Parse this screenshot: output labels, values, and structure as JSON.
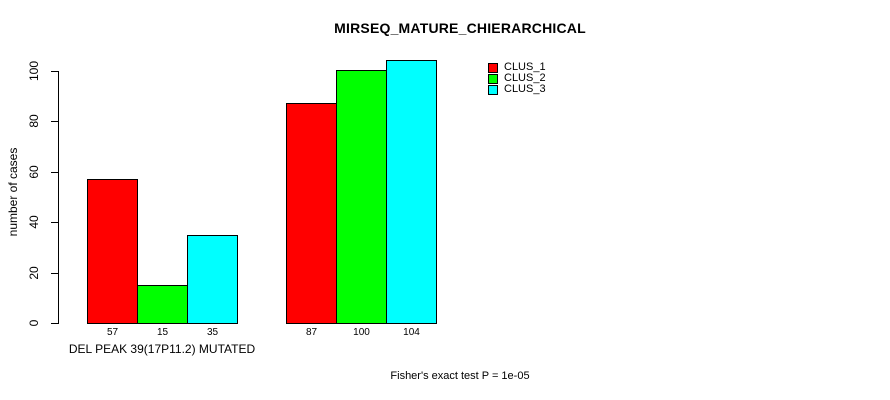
{
  "chart_data": {
    "type": "bar",
    "title": "MIRSEQ_MATURE_CHIERARCHICAL",
    "ylabel": "number of cases",
    "annotation": "Fisher's exact test P = 1e-05",
    "categories": [
      "DEL PEAK 39(17P11.2) MUTATED",
      ""
    ],
    "series": [
      {
        "name": "CLUS_1",
        "color": "#ff0000",
        "values": [
          57,
          87
        ]
      },
      {
        "name": "CLUS_2",
        "color": "#00ff00",
        "values": [
          15,
          100
        ]
      },
      {
        "name": "CLUS_3",
        "color": "#00ffff",
        "values": [
          35,
          104
        ]
      }
    ],
    "yticks": [
      0,
      20,
      40,
      60,
      80,
      100
    ],
    "ylim": [
      0,
      104
    ],
    "grid": false,
    "legend_position": "top-right",
    "bar_value_labels": true,
    "axis_color": "#000000",
    "background": "#ffffff"
  }
}
